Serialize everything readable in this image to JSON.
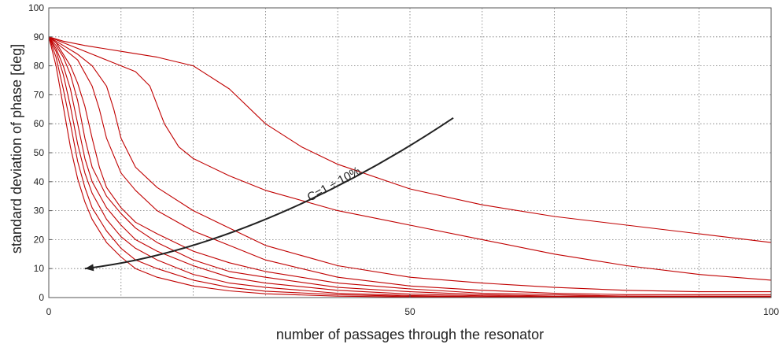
{
  "chart_data": {
    "type": "line",
    "xlabel": "number of passages through the resonator",
    "ylabel": "standard deviation of phase [deg]",
    "xlim": [
      0,
      100
    ],
    "ylim": [
      0,
      100
    ],
    "x_ticks": [
      0,
      50,
      100
    ],
    "y_ticks": [
      0,
      10,
      20,
      30,
      40,
      50,
      60,
      70,
      80,
      90,
      100
    ],
    "x_grid_step": 10,
    "grid": true,
    "grid_style": "dotted",
    "series_color": "#c00000",
    "annotation": {
      "text": "C=1 ÷ 10%",
      "arrow_color": "#222222",
      "arrow_from": [
        56,
        62
      ],
      "arrow_to": [
        5,
        10
      ]
    },
    "series": [
      {
        "x": [
          0,
          2,
          5,
          10,
          15,
          20,
          25,
          30,
          35,
          40,
          50,
          60,
          70,
          80,
          90,
          100
        ],
        "values": [
          90,
          88.5,
          87,
          85,
          83,
          80,
          72,
          60,
          52,
          46,
          37.5,
          32,
          28,
          25,
          22,
          19
        ]
      },
      {
        "x": [
          0,
          2,
          4,
          6,
          8,
          10,
          12,
          14,
          16,
          18,
          20,
          25,
          30,
          40,
          50,
          60,
          70,
          80,
          90,
          100
        ],
        "values": [
          90,
          88,
          86,
          84,
          82,
          80,
          78,
          73,
          60,
          52,
          48,
          42,
          37,
          30,
          25,
          20,
          15,
          11,
          8,
          6
        ]
      },
      {
        "x": [
          0,
          2,
          4,
          6,
          8,
          9,
          10,
          12,
          15,
          20,
          25,
          30,
          40,
          50,
          60,
          70,
          80,
          90,
          100
        ],
        "values": [
          90,
          87,
          84,
          80,
          73,
          65,
          55,
          45,
          38,
          30,
          24,
          18,
          11,
          7,
          5,
          3.5,
          2.5,
          2,
          2
        ]
      },
      {
        "x": [
          0,
          2,
          4,
          6,
          7,
          8,
          10,
          12,
          15,
          20,
          25,
          30,
          40,
          50,
          60,
          70,
          80,
          90,
          100
        ],
        "values": [
          90,
          86,
          82,
          73,
          65,
          55,
          43,
          37,
          30,
          23,
          18,
          13,
          7,
          4,
          2.5,
          1.5,
          1,
          1,
          1
        ]
      },
      {
        "x": [
          0,
          1,
          2,
          3,
          4,
          5,
          6,
          7,
          8,
          10,
          12,
          15,
          20,
          25,
          30,
          40,
          50,
          60,
          70,
          80,
          90,
          100
        ],
        "values": [
          90,
          88,
          84,
          80,
          74,
          66,
          55,
          45,
          38,
          31,
          26,
          22,
          16,
          12,
          9,
          5,
          3,
          1.5,
          1,
          0.5,
          0.5,
          0.5
        ]
      },
      {
        "x": [
          0,
          1,
          2,
          3,
          4,
          5,
          6,
          8,
          10,
          12,
          15,
          20,
          25,
          30,
          40,
          50,
          60,
          70,
          80,
          90,
          100
        ],
        "values": [
          90,
          87,
          83,
          77,
          68,
          55,
          45,
          35,
          29,
          24,
          19,
          13,
          9,
          7,
          3.5,
          2,
          1,
          0.5,
          0.5,
          0.3,
          0.3
        ]
      },
      {
        "x": [
          0,
          1,
          2,
          3,
          4,
          5,
          6,
          8,
          10,
          12,
          15,
          20,
          25,
          30,
          40,
          50,
          60,
          70,
          80,
          90,
          100
        ],
        "values": [
          90,
          86,
          80,
          72,
          60,
          48,
          40,
          31,
          25,
          20,
          16,
          11,
          7,
          5,
          2.5,
          1.2,
          0.6,
          0.3,
          0.2,
          0.2,
          0.2
        ]
      },
      {
        "x": [
          0,
          1,
          2,
          3,
          4,
          5,
          6,
          8,
          10,
          12,
          15,
          20,
          25,
          30,
          40,
          50,
          60,
          70,
          80,
          90,
          100
        ],
        "values": [
          90,
          85,
          77,
          66,
          53,
          43,
          36,
          27,
          21,
          17,
          13,
          8,
          5,
          3.5,
          1.5,
          0.7,
          0.3,
          0.2,
          0.1,
          0.1,
          0.1
        ]
      },
      {
        "x": [
          0,
          1,
          2,
          3,
          4,
          5,
          6,
          8,
          10,
          12,
          15,
          20,
          25,
          30,
          40,
          50,
          60,
          70,
          80,
          90,
          100
        ],
        "values": [
          90,
          83,
          72,
          60,
          47,
          38,
          31,
          23,
          17,
          13,
          10,
          6,
          3.5,
          2.2,
          1,
          0.4,
          0.2,
          0.1,
          0.1,
          0.1,
          0.1
        ]
      },
      {
        "x": [
          0,
          1,
          2,
          3,
          4,
          5,
          6,
          8,
          10,
          12,
          15,
          20,
          25,
          30,
          40,
          50,
          60,
          70,
          80,
          90,
          100
        ],
        "values": [
          90,
          80,
          66,
          52,
          41,
          33,
          27,
          19,
          14,
          10,
          7,
          4,
          2.3,
          1.3,
          0.5,
          0.2,
          0.1,
          0.05,
          0.05,
          0.05,
          0.05
        ]
      }
    ]
  }
}
